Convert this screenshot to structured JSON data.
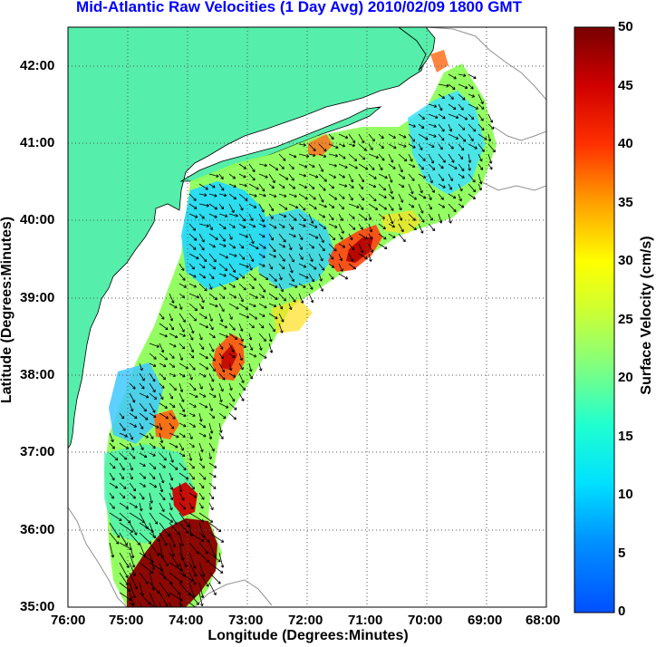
{
  "title": "Mid-Atlantic Raw Velocities (1 Day Avg) 2010/02/09 1800 GMT",
  "x_axis": {
    "label": "Longitude (Degrees:Minutes)",
    "ticks": [
      "76:00",
      "75:00",
      "74:00",
      "73:00",
      "72:00",
      "71:00",
      "70:00",
      "69:00",
      "68:00"
    ]
  },
  "y_axis": {
    "label": "Latitude (Degrees:Minutes)",
    "ticks": [
      "42:00",
      "41:00",
      "40:00",
      "39:00",
      "38:00",
      "37:00",
      "36:00",
      "35:00"
    ]
  },
  "colorbar": {
    "label": "Surface Velocity (cm/s)",
    "ticks": [
      "50",
      "45",
      "40",
      "35",
      "30",
      "25",
      "20",
      "15",
      "10",
      "5",
      "0"
    ],
    "range": [
      0,
      50
    ]
  },
  "colors": {
    "land": "#55eeaa",
    "water": "#ffffff",
    "title": "#0000ff",
    "grid": "#555555",
    "contour": "#a0a0a0"
  }
}
